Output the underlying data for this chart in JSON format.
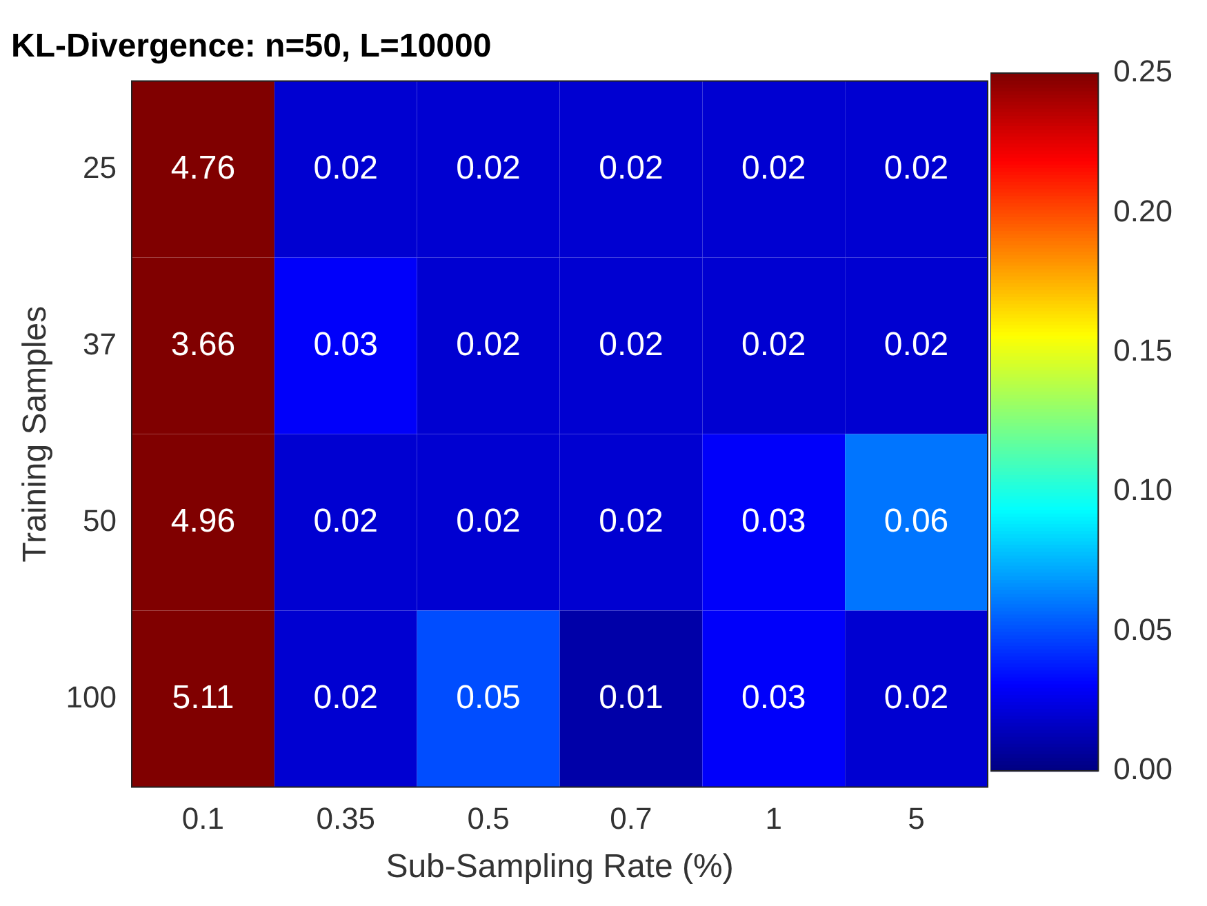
{
  "chart_data": {
    "type": "heatmap",
    "title": "KL-Divergence: n=50, L=10000",
    "xlabel": "Sub-Sampling Rate (%)",
    "ylabel": "Training Samples",
    "categories": [
      "0.1",
      "0.35",
      "0.5",
      "0.7",
      "1",
      "5"
    ],
    "y_categories": [
      "25",
      "37",
      "50",
      "100"
    ],
    "cells": [
      [
        4.76,
        0.02,
        0.02,
        0.02,
        0.02,
        0.02
      ],
      [
        3.66,
        0.03,
        0.02,
        0.02,
        0.02,
        0.02
      ],
      [
        4.96,
        0.02,
        0.02,
        0.02,
        0.03,
        0.06
      ],
      [
        5.11,
        0.02,
        0.05,
        0.01,
        0.03,
        0.02
      ]
    ],
    "data_labels": true,
    "clim": [
      0,
      0.25
    ],
    "cticks": [
      {
        "value": 0,
        "label": "0.00"
      },
      {
        "value": 0.05,
        "label": "0.05"
      },
      {
        "value": 0.1,
        "label": "0.10"
      },
      {
        "value": 0.15,
        "label": "0.15"
      },
      {
        "value": 0.2,
        "label": "0.20"
      },
      {
        "value": 0.25,
        "label": "0.25"
      }
    ]
  }
}
